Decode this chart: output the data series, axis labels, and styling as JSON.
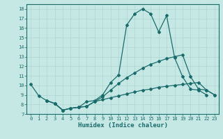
{
  "xlabel": "Humidex (Indice chaleur)",
  "bg_color": "#c5e8e5",
  "grid_color": "#b0d8d5",
  "line_color": "#1a6b6b",
  "xlim": [
    -0.5,
    23.5
  ],
  "ylim": [
    7,
    18.5
  ],
  "xticks": [
    0,
    1,
    2,
    3,
    4,
    5,
    6,
    7,
    8,
    9,
    10,
    11,
    12,
    13,
    14,
    15,
    16,
    17,
    18,
    19,
    20,
    21,
    22,
    23
  ],
  "yticks": [
    7,
    8,
    9,
    10,
    11,
    12,
    13,
    14,
    15,
    16,
    17,
    18
  ],
  "line1_x": [
    0,
    1,
    2,
    3,
    4,
    5,
    6,
    7,
    8,
    9,
    10,
    11,
    12,
    13,
    14,
    15,
    16,
    17,
    18,
    19,
    20,
    21,
    22
  ],
  "line1_y": [
    10.1,
    8.9,
    8.4,
    8.1,
    7.4,
    7.6,
    7.7,
    8.3,
    8.4,
    9.0,
    10.3,
    11.1,
    16.3,
    17.5,
    18.0,
    17.5,
    15.6,
    17.3,
    12.9,
    10.9,
    9.6,
    9.5,
    9.0
  ],
  "line2_x": [
    2,
    3,
    4,
    5,
    6,
    7,
    8,
    9,
    10,
    11,
    12,
    13,
    14,
    15,
    16,
    17,
    18,
    19,
    20,
    21,
    22,
    23
  ],
  "line2_y": [
    8.4,
    8.1,
    7.4,
    7.6,
    7.7,
    7.8,
    8.3,
    8.8,
    9.5,
    10.2,
    10.8,
    11.3,
    11.8,
    12.2,
    12.5,
    12.8,
    13.0,
    13.2,
    10.9,
    9.6,
    9.5,
    9.0
  ],
  "line3_x": [
    2,
    3,
    4,
    5,
    6,
    7,
    8,
    9,
    10,
    11,
    12,
    13,
    14,
    15,
    16,
    17,
    18,
    19,
    20,
    21,
    22,
    23
  ],
  "line3_y": [
    8.4,
    8.1,
    7.4,
    7.6,
    7.7,
    7.8,
    8.3,
    8.5,
    8.7,
    8.9,
    9.1,
    9.3,
    9.5,
    9.6,
    9.8,
    9.9,
    10.0,
    10.1,
    10.2,
    10.3,
    9.5,
    9.0
  ]
}
